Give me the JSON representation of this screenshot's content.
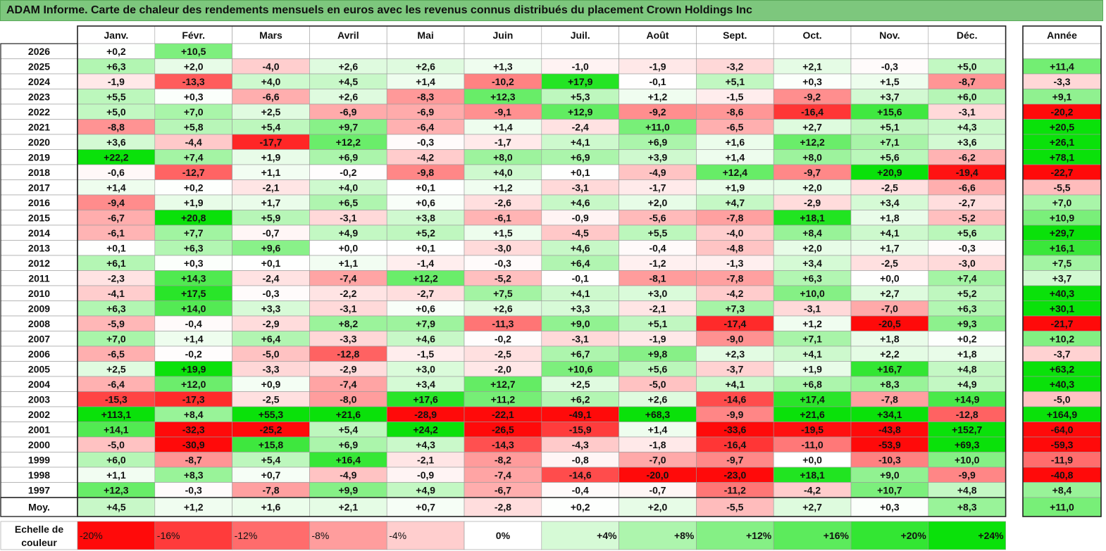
{
  "title": "ADAM Informe. Carte de chaleur des rendements mensuels en euros avec les revenus connus distribués du placement Crown Holdings Inc",
  "chart_data": {
    "type": "heatmap",
    "title": "ADAM Informe. Carte de chaleur des rendements mensuels en euros avec les revenus connus distribués du placement Crown Holdings Inc",
    "columns": [
      "Janv.",
      "Févr.",
      "Mars",
      "Avril",
      "Mai",
      "Juin",
      "Juil.",
      "Août",
      "Sept.",
      "Oct.",
      "Nov.",
      "Déc."
    ],
    "year_column": "Année",
    "rows": [
      {
        "label": "2026",
        "values": [
          0.2,
          10.5,
          null,
          null,
          null,
          null,
          null,
          null,
          null,
          null,
          null,
          null
        ],
        "year": null
      },
      {
        "label": "2025",
        "values": [
          6.3,
          2.0,
          -4.0,
          2.6,
          2.6,
          1.3,
          -1.0,
          -1.9,
          -3.2,
          2.1,
          -0.3,
          5.0
        ],
        "year": 11.4
      },
      {
        "label": "2024",
        "values": [
          -1.9,
          -13.3,
          4.0,
          4.5,
          1.4,
          -10.2,
          17.9,
          -0.1,
          5.1,
          0.3,
          1.5,
          -8.7
        ],
        "year": -3.3
      },
      {
        "label": "2023",
        "values": [
          5.5,
          0.3,
          -6.6,
          2.6,
          -8.3,
          12.3,
          5.3,
          1.2,
          -1.5,
          -9.2,
          3.7,
          6.0
        ],
        "year": 9.1
      },
      {
        "label": "2022",
        "values": [
          5.0,
          7.0,
          2.5,
          -6.9,
          -6.9,
          -9.1,
          12.9,
          -9.2,
          -8.6,
          -16.4,
          15.6,
          -3.1
        ],
        "year": -20.2
      },
      {
        "label": "2021",
        "values": [
          -8.8,
          5.8,
          5.4,
          9.7,
          -6.4,
          1.4,
          -2.4,
          11.0,
          -6.5,
          2.7,
          5.1,
          4.3
        ],
        "year": 20.5
      },
      {
        "label": "2020",
        "values": [
          3.6,
          -4.4,
          -17.7,
          12.2,
          -0.3,
          -1.7,
          4.1,
          6.9,
          1.6,
          12.2,
          7.1,
          3.6
        ],
        "year": 26.1
      },
      {
        "label": "2019",
        "values": [
          22.2,
          7.4,
          1.9,
          6.9,
          -4.2,
          8.0,
          6.9,
          3.9,
          1.4,
          8.0,
          5.6,
          -6.2
        ],
        "year": 78.1
      },
      {
        "label": "2018",
        "values": [
          -0.6,
          -12.7,
          1.1,
          -0.2,
          -9.8,
          4.0,
          0.1,
          -4.9,
          12.4,
          -9.7,
          20.9,
          -19.4
        ],
        "year": -22.7
      },
      {
        "label": "2017",
        "values": [
          1.4,
          0.2,
          -2.1,
          4.0,
          0.1,
          1.2,
          -3.1,
          -1.7,
          1.9,
          2.0,
          -2.5,
          -6.6
        ],
        "year": -5.5
      },
      {
        "label": "2016",
        "values": [
          -9.4,
          1.9,
          1.7,
          6.5,
          0.6,
          -2.6,
          4.6,
          2.0,
          4.7,
          -2.9,
          3.4,
          -2.7
        ],
        "year": 7.0
      },
      {
        "label": "2015",
        "values": [
          -6.7,
          20.8,
          5.9,
          -3.1,
          3.8,
          -6.1,
          -0.9,
          -5.6,
          -7.8,
          18.1,
          1.8,
          -5.2
        ],
        "year": 10.9
      },
      {
        "label": "2014",
        "values": [
          -6.1,
          7.7,
          -0.7,
          4.9,
          5.2,
          1.5,
          -4.5,
          5.5,
          -4.0,
          8.4,
          4.1,
          5.6
        ],
        "year": 29.7
      },
      {
        "label": "2013",
        "values": [
          0.1,
          6.3,
          9.6,
          0.0,
          0.1,
          -3.0,
          4.6,
          -0.4,
          -4.8,
          2.0,
          1.7,
          -0.3
        ],
        "year": 16.1
      },
      {
        "label": "2012",
        "values": [
          6.1,
          0.3,
          0.1,
          1.1,
          -1.4,
          -0.3,
          6.4,
          -1.2,
          -1.3,
          3.4,
          -2.5,
          -3.0
        ],
        "year": 7.5
      },
      {
        "label": "2011",
        "values": [
          -2.3,
          14.3,
          -2.4,
          -7.4,
          12.2,
          -5.2,
          -0.1,
          -8.1,
          -7.8,
          6.3,
          0.0,
          7.4
        ],
        "year": 3.7
      },
      {
        "label": "2010",
        "values": [
          -4.1,
          17.5,
          -0.3,
          -2.2,
          -2.7,
          7.5,
          4.1,
          3.0,
          -4.2,
          10.0,
          2.7,
          5.2
        ],
        "year": 40.3
      },
      {
        "label": "2009",
        "values": [
          6.3,
          14.0,
          3.3,
          -3.1,
          0.6,
          2.6,
          3.3,
          -2.1,
          7.3,
          -3.1,
          -7.0,
          6.3
        ],
        "year": 30.1
      },
      {
        "label": "2008",
        "values": [
          -5.9,
          -0.4,
          -2.9,
          8.2,
          7.9,
          -11.3,
          9.0,
          5.1,
          -17.4,
          1.2,
          -20.5,
          9.3
        ],
        "year": -21.7
      },
      {
        "label": "2007",
        "values": [
          7.0,
          1.4,
          6.4,
          -3.3,
          4.6,
          -0.2,
          -3.1,
          -1.9,
          -9.0,
          7.1,
          1.8,
          0.2
        ],
        "year": 10.2
      },
      {
        "label": "2006",
        "values": [
          -6.5,
          -0.2,
          -5.0,
          -12.8,
          -1.5,
          -2.5,
          6.7,
          9.8,
          2.3,
          4.1,
          2.2,
          1.8
        ],
        "year": -3.7
      },
      {
        "label": "2005",
        "values": [
          2.5,
          19.9,
          -3.3,
          -2.9,
          3.0,
          -2.0,
          10.6,
          5.6,
          -3.7,
          1.9,
          16.7,
          4.8
        ],
        "year": 63.2
      },
      {
        "label": "2004",
        "values": [
          -6.4,
          12.0,
          0.9,
          -7.4,
          3.4,
          12.7,
          2.5,
          -5.0,
          4.1,
          6.8,
          8.3,
          4.9
        ],
        "year": 40.3
      },
      {
        "label": "2003",
        "values": [
          -15.3,
          -17.3,
          -2.5,
          -8.0,
          17.6,
          11.2,
          6.2,
          2.6,
          -14.6,
          17.4,
          -7.8,
          14.9
        ],
        "year": -5.0
      },
      {
        "label": "2002",
        "values": [
          113.1,
          8.4,
          55.3,
          21.6,
          -28.9,
          -22.1,
          -49.1,
          68.3,
          -9.9,
          21.6,
          34.1,
          -12.8
        ],
        "year": 164.9
      },
      {
        "label": "2001",
        "values": [
          14.1,
          -32.3,
          -25.2,
          5.4,
          24.2,
          -26.5,
          -15.9,
          1.4,
          -33.6,
          -19.5,
          -43.8,
          152.7
        ],
        "year": -64.0
      },
      {
        "label": "2000",
        "values": [
          -5.0,
          -30.9,
          15.8,
          6.9,
          4.3,
          -14.3,
          -4.3,
          -1.8,
          -16.4,
          -11.0,
          -53.9,
          69.3
        ],
        "year": -59.3
      },
      {
        "label": "1999",
        "values": [
          6.0,
          -8.7,
          5.4,
          16.4,
          -2.1,
          -8.2,
          -0.8,
          -7.0,
          -9.7,
          0.0,
          -10.3,
          10.0
        ],
        "year": -11.9
      },
      {
        "label": "1998",
        "values": [
          1.1,
          8.3,
          0.7,
          -4.9,
          -0.9,
          -7.4,
          -14.6,
          -20.0,
          -23.0,
          18.1,
          9.0,
          -9.9
        ],
        "year": -40.8
      },
      {
        "label": "1997",
        "values": [
          12.3,
          -0.3,
          -7.8,
          9.9,
          4.9,
          -6.7,
          -0.4,
          -0.7,
          -11.2,
          -4.2,
          10.7,
          4.8
        ],
        "year": 8.4
      }
    ],
    "average": {
      "label": "Moy.",
      "values": [
        4.5,
        1.2,
        1.6,
        2.1,
        0.7,
        -2.8,
        0.2,
        2.0,
        -5.5,
        2.7,
        0.3,
        8.3
      ],
      "year": 11.0
    },
    "scale": {
      "label": "Echelle de couleur",
      "stops": [
        {
          "text": "-20%",
          "value": -20
        },
        {
          "text": "-16%",
          "value": -16
        },
        {
          "text": "-12%",
          "value": -12
        },
        {
          "text": "-8%",
          "value": -8
        },
        {
          "text": "-4%",
          "value": -4
        },
        {
          "text": "0%",
          "value": 0
        },
        {
          "text": "+4%",
          "value": 4
        },
        {
          "text": "+8%",
          "value": 8
        },
        {
          "text": "+12%",
          "value": 12
        },
        {
          "text": "+16%",
          "value": 16
        },
        {
          "text": "+20%",
          "value": 20
        },
        {
          "text": "+24%",
          "value": 24
        }
      ]
    },
    "colors": {
      "negative": "#ff0000",
      "positive": "#00e000",
      "neutral": "#ffffff",
      "title_bg": "#7dc77d",
      "grid": "#9a9a9a"
    }
  }
}
